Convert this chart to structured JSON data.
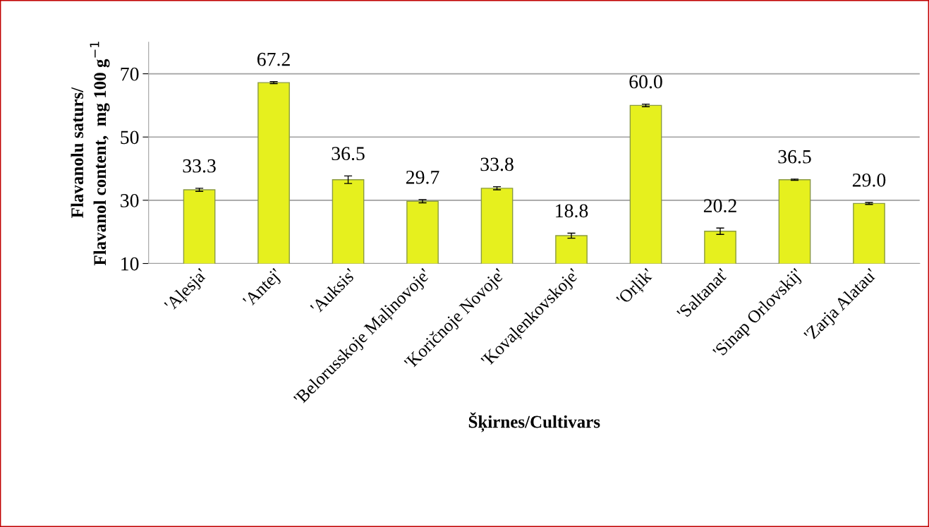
{
  "chart_data": {
    "type": "bar",
    "categories": [
      "'Aļesja'",
      "'Antej'",
      "'Auksis'",
      "'Belorusskoje Maļinovoje'",
      "'Koričnoje Novoje'",
      "'Kovaļenkovskoje'",
      "'Orļik'",
      "'Saltanat'",
      "'Sinap Orlovskij'",
      "'Zarja Alatau'"
    ],
    "values": [
      33.3,
      67.2,
      36.5,
      29.7,
      33.8,
      18.8,
      60.0,
      20.2,
      36.5,
      29.0
    ],
    "errors": [
      0.5,
      0.3,
      1.2,
      0.5,
      0.5,
      0.8,
      0.4,
      1.0,
      0.2,
      0.3
    ],
    "color": "#e6f01e",
    "value_labels": [
      "33.3",
      "67.2",
      "36.5",
      "29.7",
      "33.8",
      "18.8",
      "60.0",
      "20.2",
      "36.5",
      "29.0"
    ],
    "xlabel": "Šķirnes/Cultivars",
    "ylabel": "Flavanolu saturs/\nFlavanol content,  mg 100 g$^{−1}$",
    "ylim": [
      10,
      80
    ],
    "yticks": [
      10,
      30,
      50,
      70
    ],
    "grid": "y"
  }
}
